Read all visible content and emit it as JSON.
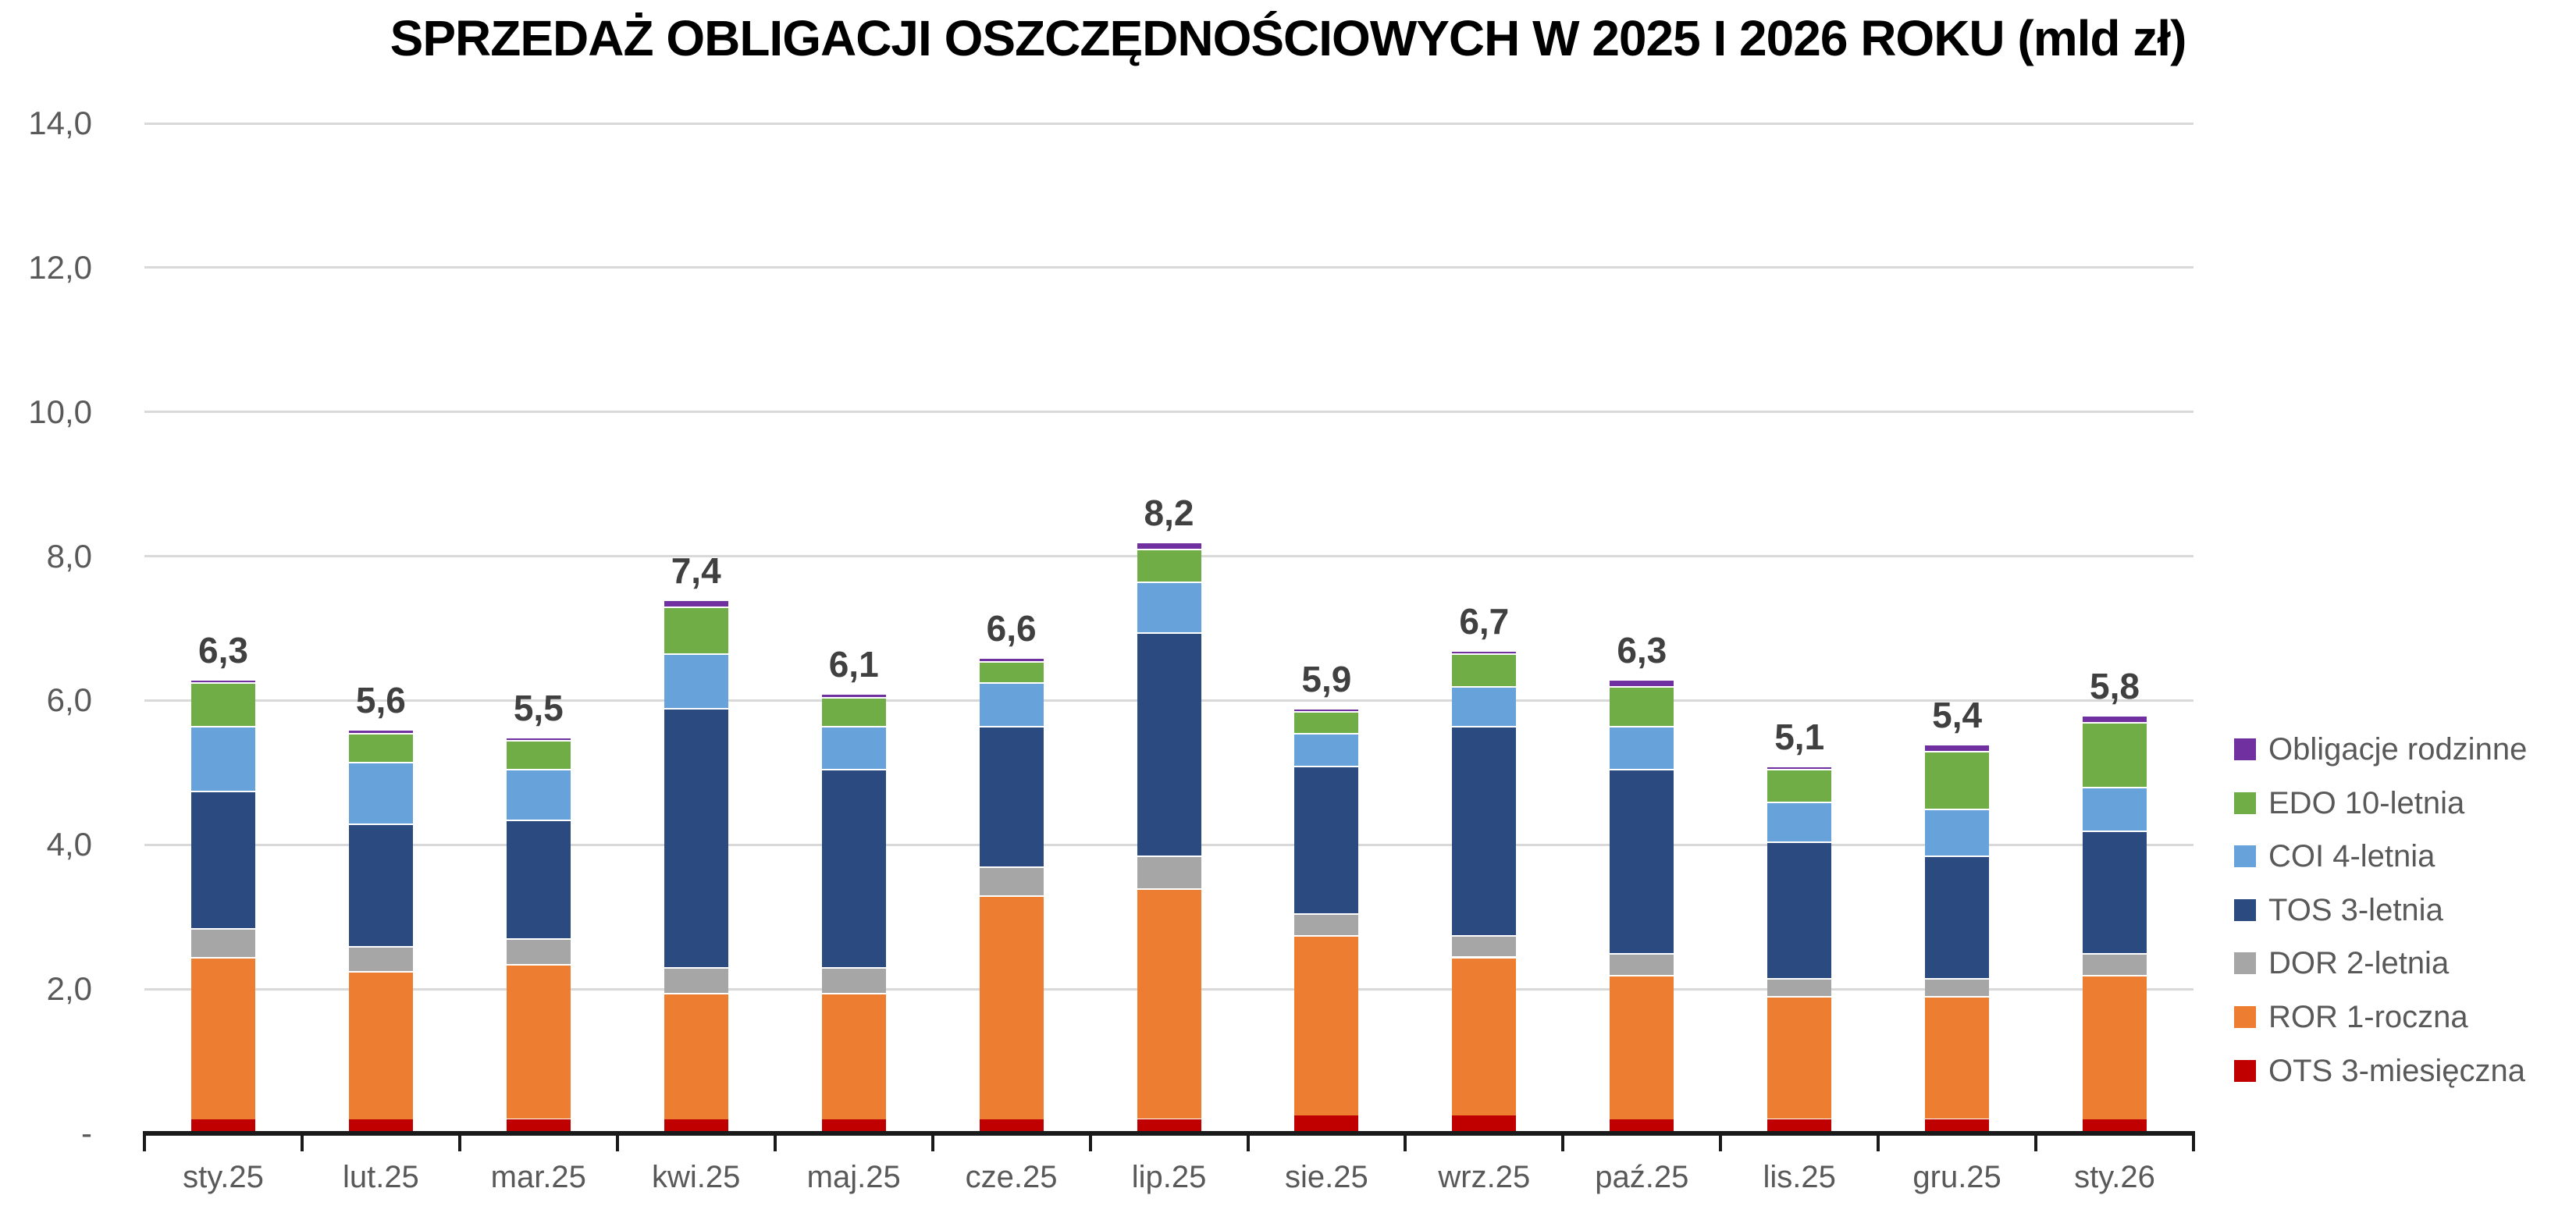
{
  "chart_data": {
    "type": "bar",
    "stacked": true,
    "title": "SPRZEDAŻ OBLIGACJI OSZCZĘDNOŚCIOWYCH W 2025 I 2026 ROKU (mld zł)",
    "categories": [
      "sty.25",
      "lut.25",
      "mar.25",
      "kwi.25",
      "maj.25",
      "cze.25",
      "lip.25",
      "sie.25",
      "wrz.25",
      "paź.25",
      "lis.25",
      "gru.25",
      "sty.26"
    ],
    "total_labels": [
      "6,3",
      "5,6",
      "5,5",
      "7,4",
      "6,1",
      "6,6",
      "8,2",
      "5,9",
      "6,7",
      "6,3",
      "5,1",
      "5,4",
      "5,8"
    ],
    "totals": [
      6.3,
      5.6,
      5.5,
      7.4,
      6.1,
      6.6,
      8.2,
      5.9,
      6.7,
      6.3,
      5.1,
      5.4,
      5.8
    ],
    "series": [
      {
        "name": "OTS 3-miesięczna",
        "color": "#C00000",
        "values": [
          0.2,
          0.2,
          0.2,
          0.2,
          0.2,
          0.2,
          0.2,
          0.25,
          0.25,
          0.2,
          0.2,
          0.2,
          0.2
        ]
      },
      {
        "name": "ROR 1-roczna",
        "color": "#ED7D31",
        "values": [
          2.25,
          2.05,
          2.15,
          1.75,
          1.75,
          3.1,
          3.2,
          2.5,
          2.2,
          2.0,
          1.7,
          1.7,
          2.0
        ]
      },
      {
        "name": "DOR 2-letnia",
        "color": "#A6A6A6",
        "values": [
          0.4,
          0.35,
          0.35,
          0.35,
          0.35,
          0.4,
          0.45,
          0.3,
          0.3,
          0.3,
          0.25,
          0.25,
          0.3
        ]
      },
      {
        "name": "TOS 3-letnia",
        "color": "#2B4B80",
        "values": [
          1.9,
          1.7,
          1.65,
          3.6,
          2.75,
          1.95,
          3.1,
          2.05,
          2.9,
          2.55,
          1.9,
          1.7,
          1.7
        ]
      },
      {
        "name": "COI 4-letnia",
        "color": "#67A2DB",
        "values": [
          0.9,
          0.85,
          0.7,
          0.75,
          0.6,
          0.6,
          0.7,
          0.45,
          0.55,
          0.6,
          0.55,
          0.65,
          0.6
        ]
      },
      {
        "name": "EDO 10-letnia",
        "color": "#70AD47",
        "values": [
          0.6,
          0.4,
          0.4,
          0.65,
          0.4,
          0.3,
          0.45,
          0.3,
          0.45,
          0.55,
          0.45,
          0.8,
          0.9
        ]
      },
      {
        "name": "Obligacje rodzinne",
        "color": "#7030A0",
        "values": [
          0.05,
          0.05,
          0.05,
          0.1,
          0.05,
          0.05,
          0.1,
          0.05,
          0.05,
          0.1,
          0.05,
          0.1,
          0.1
        ]
      }
    ],
    "legend_order_note": "legend displayed top-to-bottom is reverse of stack order",
    "y_axis": {
      "tick_values": [
        0,
        2,
        4,
        6,
        8,
        10,
        12,
        14
      ],
      "tick_labels": [
        "-",
        "2,0",
        "4,0",
        "6,0",
        "8,0",
        "10,0",
        "12,0",
        "14,0"
      ],
      "max": 14,
      "grid": true
    },
    "legend_position": "right",
    "style": {
      "background": "#FFFFFF",
      "grid_color": "#D9D9D9",
      "axis_color": "#1A1A1A",
      "tick_label_color": "#595959",
      "total_label_color": "#404040",
      "title_color": "#000000",
      "separator_color": "#FFFFFF"
    }
  }
}
